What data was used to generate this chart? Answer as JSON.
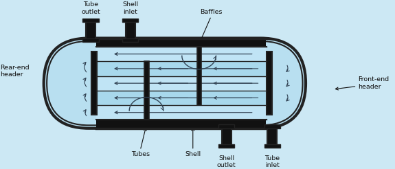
{
  "fig_width": 5.75,
  "fig_height": 2.46,
  "dpi": 100,
  "bg_color": "#cce8f4",
  "shell_fill": "#b8dff0",
  "shell_edge": "#222222",
  "tube_fill": "#c8e8f8",
  "dark": "#111111",
  "arrow_color": "#334455",
  "label_color": "#111111",
  "labels": {
    "tube_outlet": "Tube\noutlet",
    "shell_inlet": "Shell\ninlet",
    "baffles": "Baffles",
    "front_end": "Front-end\nheader",
    "rear_end": "Rear-end\nheader",
    "tubes": "Tubes",
    "shell": "Shell",
    "shell_outlet": "Shell\noutlet",
    "tube_inlet": "Tube\ninlet"
  }
}
